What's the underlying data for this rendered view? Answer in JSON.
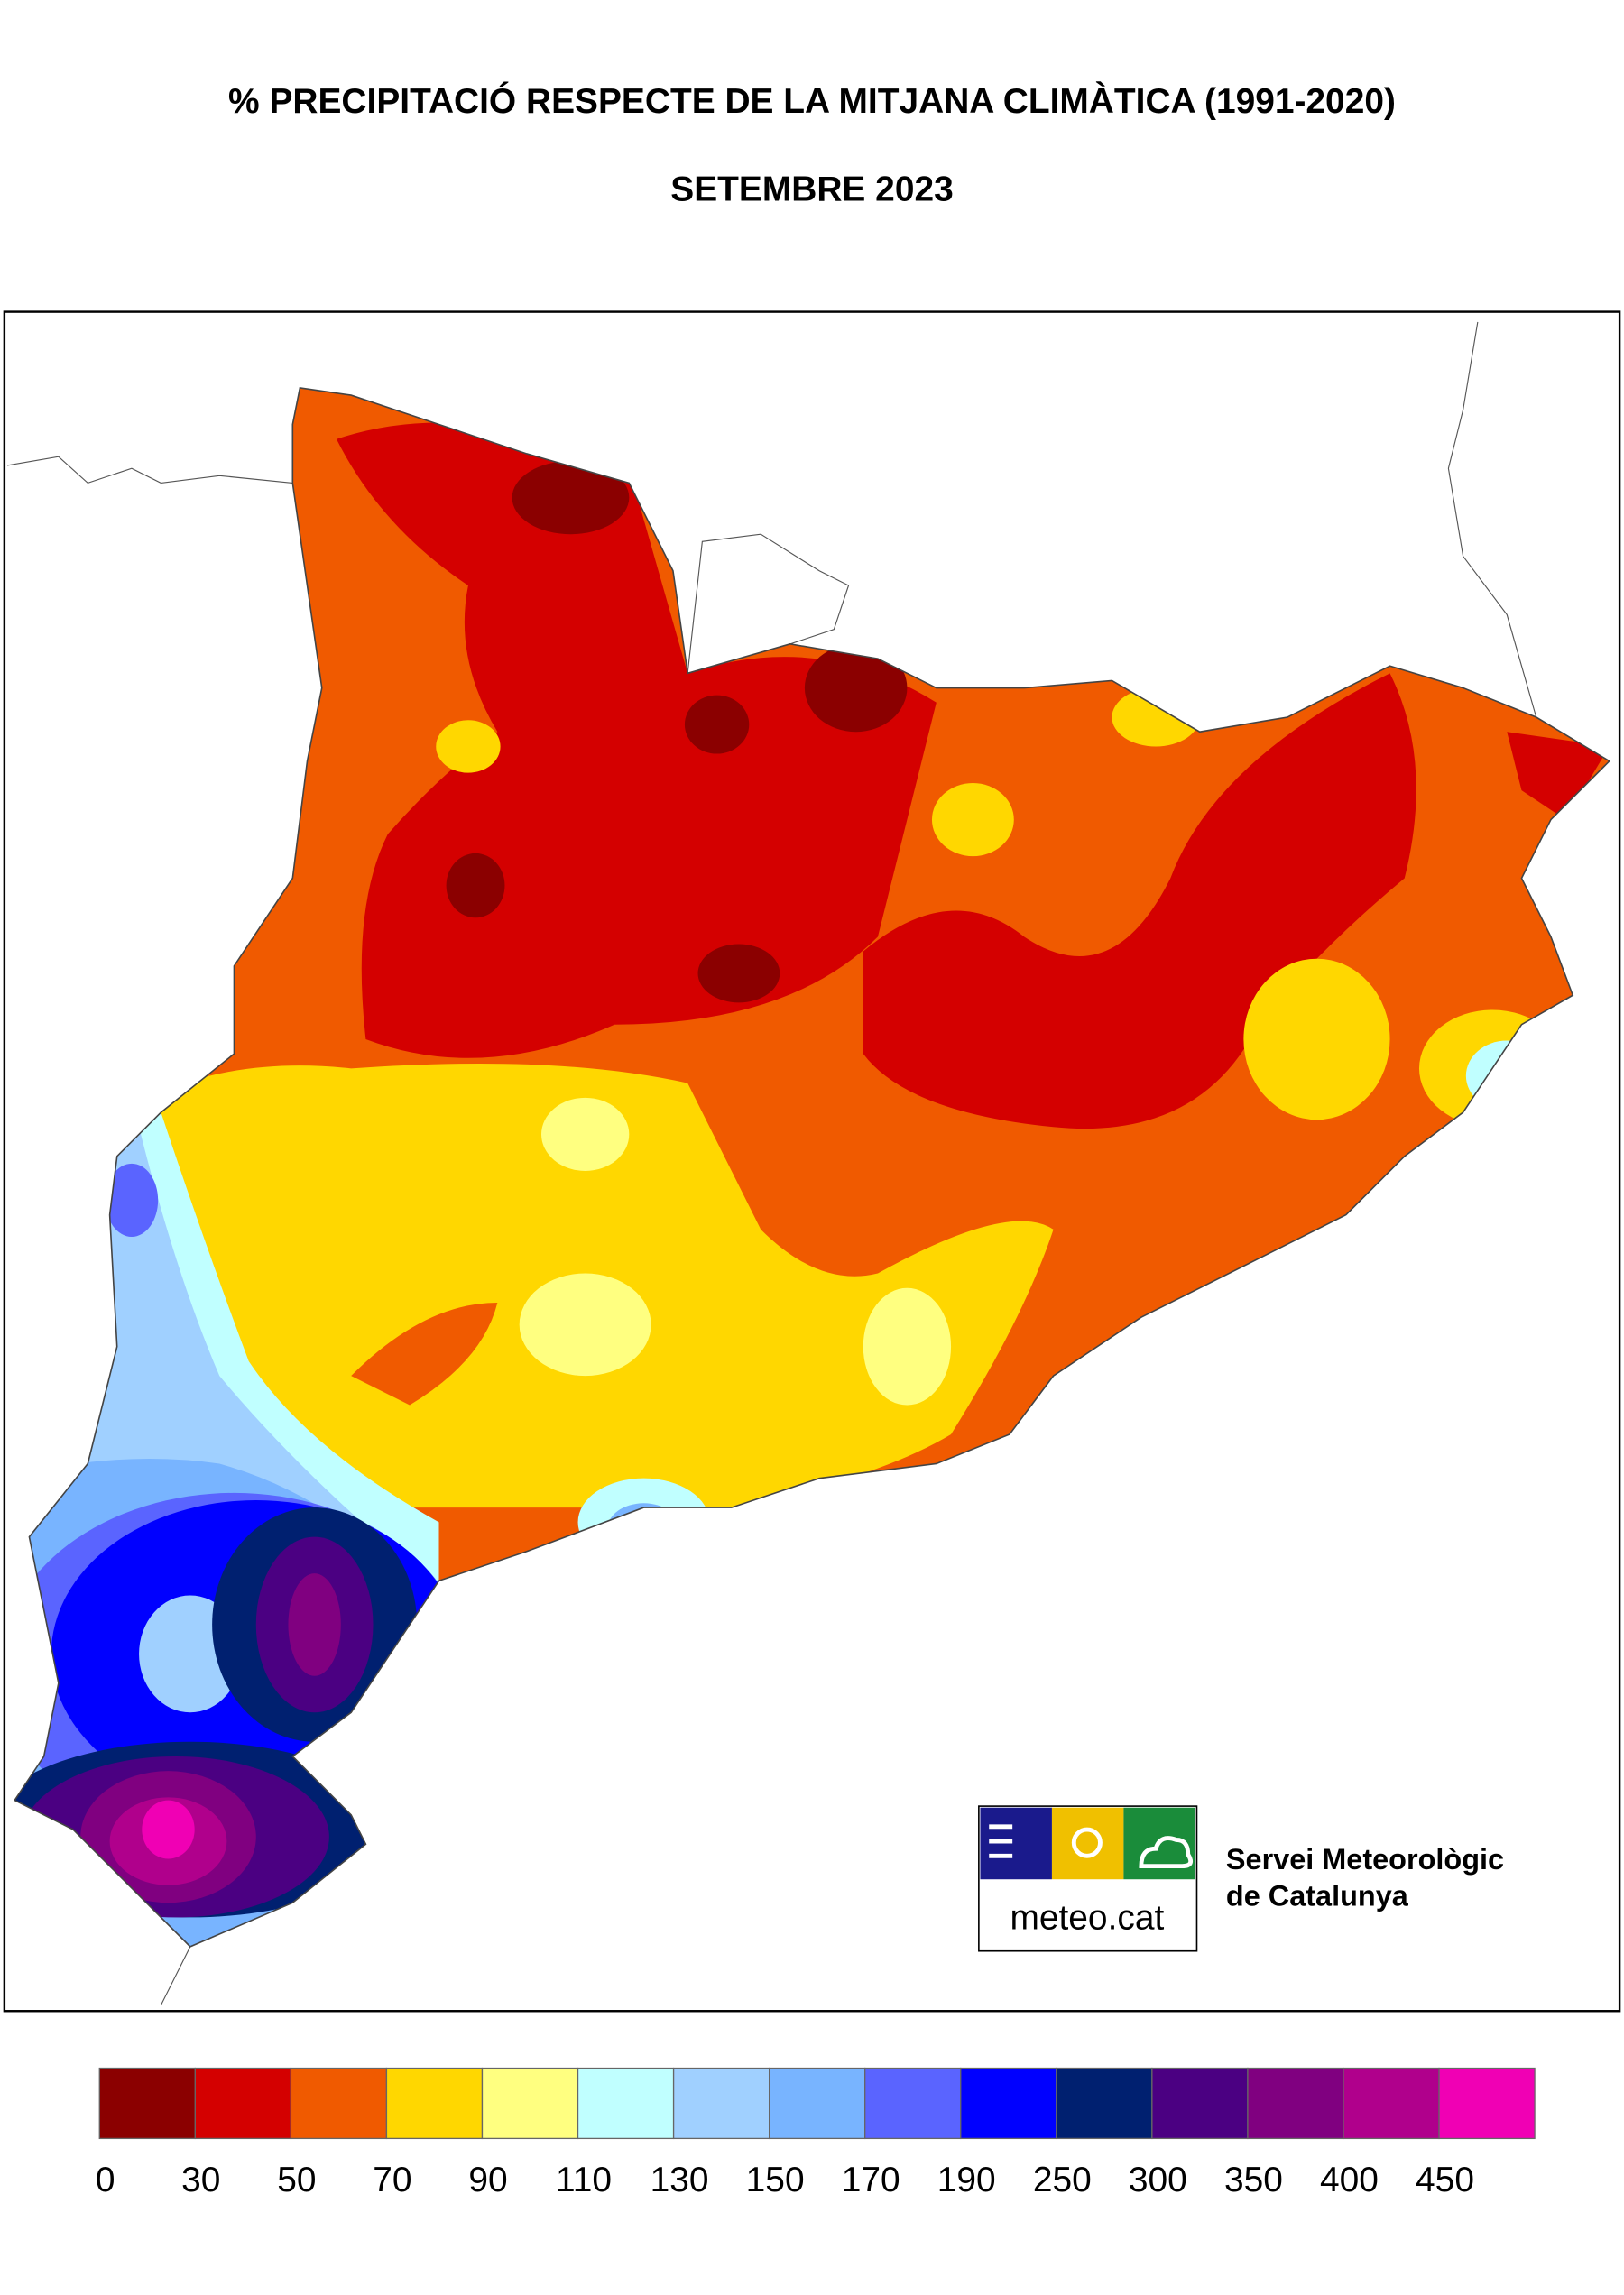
{
  "title": "% PRECIPITACIÓ RESPECTE DE LA MITJANA CLIMÀTICA (1991-2020)",
  "subtitle": "SETEMBRE 2023",
  "legend": {
    "colors": [
      "#8b0000",
      "#d40000",
      "#f05a00",
      "#ffd700",
      "#ffff80",
      "#c0ffff",
      "#a0d0ff",
      "#78b4ff",
      "#5a64ff",
      "#0000ff",
      "#002070",
      "#4b0082",
      "#800080",
      "#b0008c",
      "#f000b4"
    ],
    "ticks": [
      0,
      30,
      50,
      70,
      90,
      110,
      130,
      150,
      170,
      190,
      250,
      300,
      350,
      400,
      450
    ]
  },
  "logo": {
    "text": "meteo.cat",
    "organization": [
      "Servei Meteorològic",
      "de Catalunya"
    ]
  }
}
